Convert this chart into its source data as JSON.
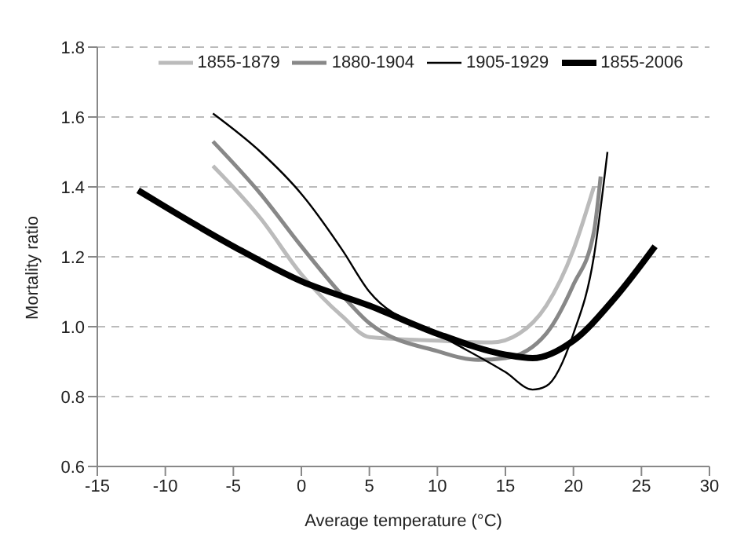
{
  "chart_data": {
    "type": "line",
    "xlabel": "Average temperature (°C)",
    "ylabel": "Mortality ratio",
    "xlim": [
      -15,
      30
    ],
    "xticks": [
      -15,
      -10,
      -5,
      0,
      5,
      10,
      15,
      20,
      25,
      30
    ],
    "ylim": [
      0.6,
      1.8
    ],
    "yticks": [
      0.6,
      0.8,
      {
        "value": 1,
        "label": "1.0"
      },
      1.2,
      1.4,
      1.6,
      1.8
    ],
    "grid": "y",
    "legend": "top",
    "series": [
      {
        "name": "1855-1879",
        "color": "#bbbbbb",
        "x": [
          -6.5,
          -3,
          0,
          3,
          5,
          10,
          14,
          16,
          18,
          20,
          21.5
        ],
        "values": [
          1.46,
          1.31,
          1.15,
          1.03,
          0.97,
          0.96,
          0.955,
          0.98,
          1.06,
          1.22,
          1.4
        ]
      },
      {
        "name": "1880-1904",
        "color": "#888888",
        "x": [
          -6.5,
          -3,
          0,
          3,
          5,
          10,
          13,
          15,
          18,
          20,
          21.5,
          22
        ],
        "values": [
          1.53,
          1.38,
          1.23,
          1.09,
          1.01,
          0.93,
          0.905,
          0.91,
          0.98,
          1.12,
          1.27,
          1.43
        ]
      },
      {
        "name": "1905-1929",
        "color": "#000000",
        "x": [
          -6.5,
          -3,
          0,
          3,
          5,
          10,
          15,
          17,
          18,
          20,
          21.5,
          22.5
        ],
        "values": [
          1.61,
          1.5,
          1.38,
          1.22,
          1.1,
          0.98,
          0.87,
          0.82,
          0.83,
          0.98,
          1.2,
          1.5
        ]
      },
      {
        "name": "1855-2006",
        "color": "#000000",
        "x": [
          -12,
          -5,
          0,
          5,
          10,
          15,
          17,
          20,
          23,
          26
        ],
        "values": [
          1.39,
          1.23,
          1.13,
          1.06,
          0.98,
          0.92,
          0.91,
          0.96,
          1.08,
          1.23
        ]
      }
    ]
  }
}
